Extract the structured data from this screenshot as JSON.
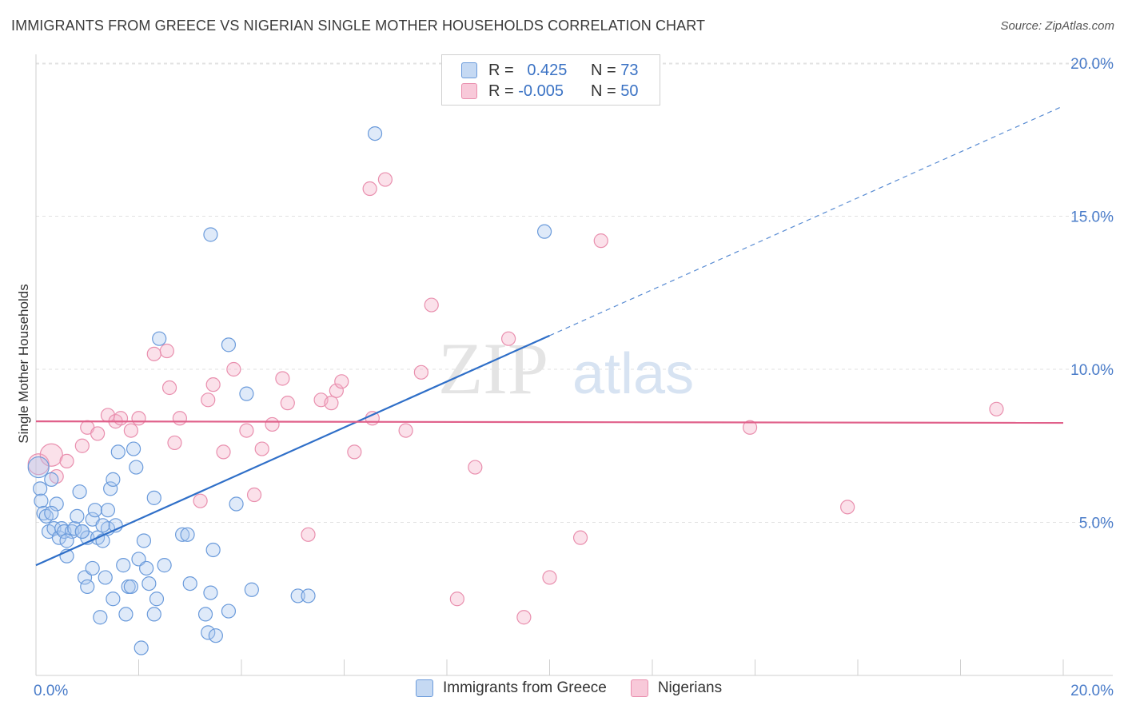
{
  "title": "IMMIGRANTS FROM GREECE VS NIGERIAN SINGLE MOTHER HOUSEHOLDS CORRELATION CHART",
  "source": "Source: ZipAtlas.com",
  "watermark": {
    "zip": "ZIP",
    "atlas": "atlas"
  },
  "legend": {
    "rows": [
      {
        "r_label": "R =",
        "r_value": "0.425",
        "n_label": "N =",
        "n_value": "73"
      },
      {
        "r_label": "R =",
        "r_value": "-0.005",
        "n_label": "N =",
        "n_value": "50"
      }
    ]
  },
  "chart_data": {
    "type": "scatter",
    "title": "IMMIGRANTS FROM GREECE VS NIGERIAN SINGLE MOTHER HOUSEHOLDS CORRELATION CHART",
    "xlabel": "",
    "ylabel": "Single Mother Households",
    "xlim": [
      0,
      20
    ],
    "ylim": [
      0,
      20
    ],
    "x_ticks": [
      "0.0%",
      "20.0%"
    ],
    "y_ticks": [
      {
        "value": 5,
        "label": "5.0%"
      },
      {
        "value": 10,
        "label": "10.0%"
      },
      {
        "value": 15,
        "label": "15.0%"
      },
      {
        "value": 20,
        "label": "20.0%"
      }
    ],
    "grid": true,
    "legend_position": "top-center",
    "colors": {
      "greece": "#5b8fd6",
      "nigerian": "#e887a8",
      "greece_line": "#2f6fc8",
      "nigerian_line": "#e0608a"
    },
    "series": [
      {
        "name": "Immigrants from Greece",
        "r": 0.425,
        "n": 73,
        "trend": {
          "x0": 0,
          "y0": 3.6,
          "x1": 10,
          "y1": 11.1,
          "dash_to_x": 20,
          "dash_to_y": 18.6
        },
        "points": [
          [
            0.05,
            6.8
          ],
          [
            0.08,
            6.1
          ],
          [
            0.1,
            5.7
          ],
          [
            0.15,
            5.3
          ],
          [
            0.2,
            5.2
          ],
          [
            0.25,
            4.7
          ],
          [
            0.3,
            6.4
          ],
          [
            0.35,
            4.8
          ],
          [
            0.4,
            5.6
          ],
          [
            0.45,
            4.5
          ],
          [
            0.5,
            4.8
          ],
          [
            0.55,
            4.7
          ],
          [
            0.6,
            3.9
          ],
          [
            0.7,
            4.7
          ],
          [
            0.75,
            4.8
          ],
          [
            0.8,
            5.2
          ],
          [
            0.85,
            6.0
          ],
          [
            0.9,
            4.7
          ],
          [
            0.95,
            3.2
          ],
          [
            1.0,
            4.5
          ],
          [
            1.0,
            2.9
          ],
          [
            1.1,
            5.1
          ],
          [
            1.1,
            3.5
          ],
          [
            1.15,
            5.4
          ],
          [
            1.2,
            4.5
          ],
          [
            1.25,
            1.9
          ],
          [
            1.3,
            4.4
          ],
          [
            1.35,
            3.2
          ],
          [
            1.4,
            4.8
          ],
          [
            1.4,
            5.4
          ],
          [
            1.45,
            6.1
          ],
          [
            1.5,
            6.4
          ],
          [
            1.5,
            2.5
          ],
          [
            1.55,
            4.9
          ],
          [
            1.6,
            7.3
          ],
          [
            1.7,
            3.6
          ],
          [
            1.75,
            2.0
          ],
          [
            1.8,
            2.9
          ],
          [
            1.85,
            2.9
          ],
          [
            1.9,
            7.4
          ],
          [
            1.95,
            6.8
          ],
          [
            2.0,
            3.8
          ],
          [
            2.05,
            0.9
          ],
          [
            2.1,
            4.4
          ],
          [
            2.15,
            3.5
          ],
          [
            2.2,
            3.0
          ],
          [
            2.3,
            5.8
          ],
          [
            2.35,
            2.5
          ],
          [
            2.5,
            3.6
          ],
          [
            2.4,
            11.0
          ],
          [
            2.85,
            4.6
          ],
          [
            2.95,
            4.6
          ],
          [
            3.0,
            3.0
          ],
          [
            3.3,
            2.0
          ],
          [
            3.35,
            1.4
          ],
          [
            3.4,
            2.7
          ],
          [
            3.45,
            4.1
          ],
          [
            3.5,
            1.3
          ],
          [
            3.75,
            2.1
          ],
          [
            4.2,
            2.8
          ],
          [
            3.75,
            10.8
          ],
          [
            3.9,
            5.6
          ],
          [
            3.4,
            14.4
          ],
          [
            4.1,
            9.2
          ],
          [
            5.1,
            2.6
          ],
          [
            5.3,
            2.6
          ],
          [
            6.6,
            17.7
          ],
          [
            9.9,
            14.5
          ],
          [
            0.3,
            5.3
          ],
          [
            0.6,
            4.4
          ],
          [
            1.3,
            4.9
          ],
          [
            0.9,
            4.7
          ],
          [
            2.3,
            2.0
          ]
        ]
      },
      {
        "name": "Nigerians",
        "r": -0.005,
        "n": 50,
        "trend": {
          "x0": 0,
          "y0": 8.3,
          "x1": 20,
          "y1": 8.25
        },
        "points": [
          [
            0.05,
            6.9
          ],
          [
            0.3,
            7.2
          ],
          [
            0.4,
            6.5
          ],
          [
            0.6,
            7.0
          ],
          [
            0.9,
            7.5
          ],
          [
            1.0,
            8.1
          ],
          [
            1.2,
            7.9
          ],
          [
            1.4,
            8.5
          ],
          [
            1.55,
            8.3
          ],
          [
            1.65,
            8.4
          ],
          [
            1.85,
            8.0
          ],
          [
            2.0,
            8.4
          ],
          [
            2.3,
            10.5
          ],
          [
            2.55,
            10.6
          ],
          [
            2.6,
            9.4
          ],
          [
            2.7,
            7.6
          ],
          [
            2.8,
            8.4
          ],
          [
            3.2,
            5.7
          ],
          [
            3.35,
            9.0
          ],
          [
            3.45,
            9.5
          ],
          [
            3.65,
            7.3
          ],
          [
            3.85,
            10.0
          ],
          [
            4.1,
            8.0
          ],
          [
            4.25,
            5.9
          ],
          [
            4.4,
            7.4
          ],
          [
            4.6,
            8.2
          ],
          [
            4.8,
            9.7
          ],
          [
            4.9,
            8.9
          ],
          [
            5.3,
            4.6
          ],
          [
            5.55,
            9.0
          ],
          [
            5.75,
            8.9
          ],
          [
            5.85,
            9.3
          ],
          [
            5.95,
            9.6
          ],
          [
            6.2,
            7.3
          ],
          [
            6.5,
            15.9
          ],
          [
            6.55,
            8.4
          ],
          [
            6.8,
            16.2
          ],
          [
            7.2,
            8.0
          ],
          [
            7.5,
            9.9
          ],
          [
            7.7,
            12.1
          ],
          [
            8.2,
            2.5
          ],
          [
            8.55,
            6.8
          ],
          [
            9.2,
            11.0
          ],
          [
            9.5,
            1.9
          ],
          [
            10.0,
            3.2
          ],
          [
            10.6,
            4.5
          ],
          [
            11.0,
            14.2
          ],
          [
            13.9,
            8.1
          ],
          [
            15.8,
            5.5
          ],
          [
            18.7,
            8.7
          ]
        ]
      }
    ]
  }
}
